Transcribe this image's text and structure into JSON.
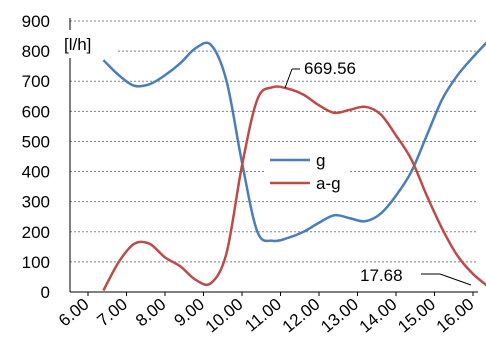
{
  "chart_data": {
    "type": "line",
    "ylabel": "[l/h]",
    "ylim": [
      0,
      900
    ],
    "yticks": [
      0,
      100,
      200,
      300,
      400,
      500,
      600,
      700,
      800,
      900
    ],
    "categories": [
      "6.00",
      "7.00",
      "8.00",
      "9.00",
      "10.00",
      "11.00",
      "12.00",
      "13.00",
      "14.00",
      "15.00",
      "16.00"
    ],
    "grid": "horizontal-dashed",
    "legend_position": "center-right",
    "series": [
      {
        "name": "g",
        "color": "#4a7ebb",
        "x": [
          6.4,
          6.8,
          7.2,
          7.6,
          8.0,
          8.4,
          8.8,
          9.2,
          9.6,
          10.0,
          10.4,
          10.8,
          11.2,
          11.6,
          12.0,
          12.4,
          12.8,
          13.2,
          13.6,
          14.0,
          14.4,
          14.8,
          15.2,
          15.6,
          16.0,
          16.4
        ],
        "values": [
          770,
          720,
          685,
          690,
          720,
          760,
          810,
          820,
          700,
          430,
          200,
          170,
          180,
          200,
          230,
          255,
          245,
          235,
          260,
          320,
          400,
          520,
          640,
          720,
          780,
          835
        ]
      },
      {
        "name": "a-g",
        "color": "#be4b48",
        "x": [
          6.4,
          6.8,
          7.2,
          7.6,
          8.0,
          8.4,
          8.8,
          9.2,
          9.6,
          10.0,
          10.4,
          10.8,
          11.2,
          11.6,
          12.0,
          12.4,
          12.8,
          13.2,
          13.6,
          14.0,
          14.4,
          14.8,
          15.2,
          15.6,
          16.0,
          16.4
        ],
        "values": [
          5,
          100,
          160,
          160,
          115,
          85,
          40,
          30,
          130,
          420,
          640,
          680,
          675,
          655,
          620,
          595,
          605,
          615,
          590,
          520,
          440,
          320,
          210,
          120,
          60,
          17.68
        ]
      }
    ],
    "annotations": [
      {
        "text": "669.56",
        "series": "a-g",
        "x": 11.4,
        "y": 669.56
      },
      {
        "text": "17.68",
        "series": "a-g",
        "x": 16.4,
        "y": 17.68
      }
    ]
  }
}
